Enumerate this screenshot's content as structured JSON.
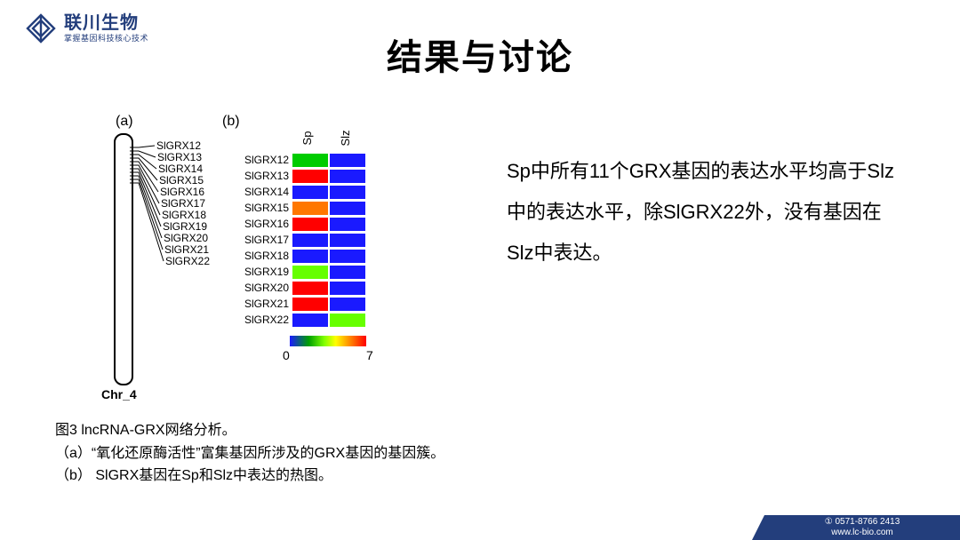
{
  "logo": {
    "company": "联川生物",
    "tagline": "掌握基因科技核心技术",
    "stroke": "#233e7c"
  },
  "title": "结果与讨论",
  "panel_labels": {
    "a": "(a)",
    "b": "(b)"
  },
  "chromosome": {
    "label": "Chr_4",
    "genes": [
      "SlGRX12",
      "SlGRX13",
      "SlGRX14",
      "SlGRX15",
      "SlGRX16",
      "SlGRX17",
      "SlGRX18",
      "SlGRX19",
      "SlGRX20",
      "SlGRX21",
      "SlGRX22"
    ]
  },
  "heatmap": {
    "type": "heatmap",
    "col_labels": [
      "Sp",
      "Slz"
    ],
    "rows": [
      {
        "label": "SlGRX12",
        "cells": [
          "#00cc00",
          "#1a1aff"
        ]
      },
      {
        "label": "SlGRX13",
        "cells": [
          "#ff0000",
          "#1a1aff"
        ]
      },
      {
        "label": "SlGRX14",
        "cells": [
          "#1a1aff",
          "#1a1aff"
        ]
      },
      {
        "label": "SlGRX15",
        "cells": [
          "#ff7700",
          "#1a1aff"
        ]
      },
      {
        "label": "SlGRX16",
        "cells": [
          "#ff0000",
          "#1a1aff"
        ]
      },
      {
        "label": "SlGRX17",
        "cells": [
          "#1a1aff",
          "#1a1aff"
        ]
      },
      {
        "label": "SlGRX18",
        "cells": [
          "#1a1aff",
          "#1a1aff"
        ]
      },
      {
        "label": "SlGRX19",
        "cells": [
          "#66ff00",
          "#1a1aff"
        ]
      },
      {
        "label": "SlGRX20",
        "cells": [
          "#ff0000",
          "#1a1aff"
        ]
      },
      {
        "label": "SlGRX21",
        "cells": [
          "#ff0000",
          "#1a1aff"
        ]
      },
      {
        "label": "SlGRX22",
        "cells": [
          "#1a1aff",
          "#66ff00"
        ]
      }
    ],
    "scale_min": "0",
    "scale_max": "7"
  },
  "description": "Sp中所有11个GRX基因的表达水平均高于Slz中的表达水平，除SlGRX22外，没有基因在Slz中表达。",
  "caption": {
    "line1": "图3  lncRNA-GRX网络分析。",
    "line2": "（a）“氧化还原酶活性”富集基因所涉及的GRX基因的基因簇。",
    "line3": "（b） SlGRX基因在Sp和Slz中表达的热图。"
  },
  "footer": {
    "phone": "① 0571-8766 2413",
    "url": "www.lc-bio.com"
  }
}
